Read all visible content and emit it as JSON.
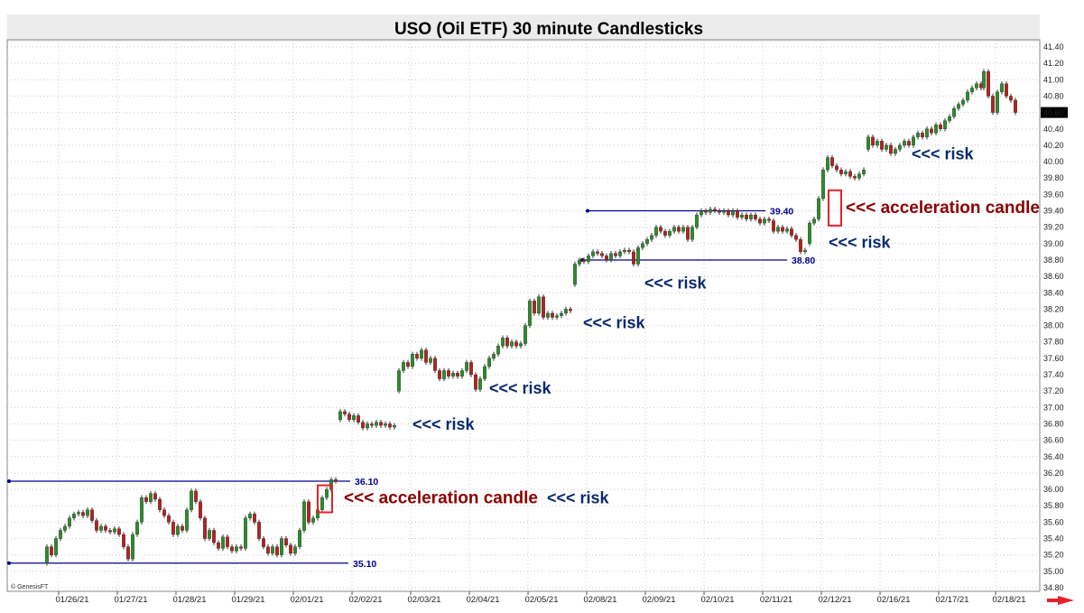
{
  "colors": {
    "up": "#2e8b2e",
    "down": "#b22222",
    "wick": "#333333",
    "level_line": "#00008b",
    "annotation_risk": "#0a2a6e",
    "annotation_accel": "#8b0000",
    "box": "#e8202a",
    "title_bg": "#ececec",
    "arrow": "#e8202a"
  },
  "chart_data": {
    "type": "candlestick",
    "title": "USO (Oil ETF) 30 minute Candlesticks",
    "credit": "© GenesisFT",
    "ylim": [
      34.8,
      41.4
    ],
    "yticks": [
      "34.80",
      "35.00",
      "35.20",
      "35.40",
      "35.60",
      "35.80",
      "36.00",
      "36.20",
      "36.40",
      "36.60",
      "36.80",
      "37.00",
      "37.20",
      "37.40",
      "37.60",
      "37.80",
      "38.00",
      "38.20",
      "38.40",
      "38.60",
      "38.80",
      "39.00",
      "39.20",
      "39.40",
      "39.60",
      "39.80",
      "40.00",
      "40.20",
      "40.40",
      "40.60",
      "40.80",
      "41.00",
      "41.20",
      "41.40"
    ],
    "last_price": "40.60",
    "grid": true,
    "x_categories": [
      "01/26/21",
      "01/27/21",
      "01/28/21",
      "01/29/21",
      "02/01/21",
      "02/02/21",
      "02/03/21",
      "02/04/21",
      "02/05/21",
      "02/08/21",
      "02/09/21",
      "02/10/21",
      "02/11/21",
      "02/12/21",
      "02/16/21",
      "02/17/21",
      "02/18/21"
    ],
    "sessions": [
      {
        "label": "01/26/21",
        "points": [
          [
            35.1,
            35.3
          ],
          [
            35.3,
            35.2
          ],
          [
            35.2,
            35.4
          ],
          [
            35.4,
            35.5
          ],
          [
            35.5,
            35.55
          ],
          [
            35.55,
            35.65
          ],
          [
            35.65,
            35.7
          ],
          [
            35.7,
            35.72
          ],
          [
            35.72,
            35.68
          ],
          [
            35.68,
            35.75
          ],
          [
            35.75,
            35.62
          ],
          [
            35.62,
            35.5
          ],
          [
            35.5,
            35.55
          ]
        ]
      },
      {
        "label": "01/27/21",
        "points": [
          [
            35.55,
            35.5
          ],
          [
            35.5,
            35.48
          ],
          [
            35.48,
            35.52
          ],
          [
            35.52,
            35.45
          ],
          [
            35.45,
            35.3
          ],
          [
            35.3,
            35.15
          ],
          [
            35.15,
            35.45
          ],
          [
            35.45,
            35.6
          ],
          [
            35.6,
            35.9
          ],
          [
            35.9,
            35.85
          ],
          [
            35.85,
            35.95
          ],
          [
            35.95,
            35.88
          ],
          [
            35.88,
            35.75
          ]
        ]
      },
      {
        "label": "01/28/21",
        "points": [
          [
            35.75,
            35.68
          ],
          [
            35.68,
            35.6
          ],
          [
            35.6,
            35.45
          ],
          [
            35.45,
            35.55
          ],
          [
            35.55,
            35.5
          ],
          [
            35.5,
            35.75
          ],
          [
            35.75,
            35.98
          ],
          [
            35.98,
            35.85
          ],
          [
            35.85,
            35.65
          ],
          [
            35.65,
            35.4
          ],
          [
            35.4,
            35.5
          ],
          [
            35.5,
            35.35
          ],
          [
            35.35,
            35.28
          ]
        ]
      },
      {
        "label": "01/29/21",
        "points": [
          [
            35.28,
            35.42
          ],
          [
            35.42,
            35.3
          ],
          [
            35.3,
            35.25
          ],
          [
            35.25,
            35.3
          ],
          [
            35.3,
            35.28
          ],
          [
            35.28,
            35.65
          ],
          [
            35.65,
            35.7
          ],
          [
            35.7,
            35.6
          ],
          [
            35.6,
            35.4
          ],
          [
            35.4,
            35.3
          ],
          [
            35.3,
            35.22
          ],
          [
            35.22,
            35.3
          ],
          [
            35.3,
            35.2
          ]
        ]
      },
      {
        "label": "02/01/21",
        "points": [
          [
            35.2,
            35.4
          ],
          [
            35.4,
            35.32
          ],
          [
            35.32,
            35.22
          ],
          [
            35.22,
            35.3
          ],
          [
            35.3,
            35.5
          ],
          [
            35.5,
            35.85
          ],
          [
            35.85,
            35.6
          ],
          [
            35.6,
            35.65
          ],
          [
            35.65,
            35.75
          ],
          [
            35.75,
            35.9
          ],
          [
            35.9,
            36.0
          ],
          [
            36.0,
            36.12
          ],
          [
            36.12,
            36.1
          ]
        ]
      },
      {
        "label": "02/02/21",
        "points": [
          [
            36.85,
            36.95
          ],
          [
            36.95,
            36.92
          ],
          [
            36.92,
            36.85
          ],
          [
            36.85,
            36.9
          ],
          [
            36.9,
            36.82
          ],
          [
            36.82,
            36.75
          ],
          [
            36.75,
            36.8
          ],
          [
            36.8,
            36.78
          ],
          [
            36.78,
            36.82
          ],
          [
            36.82,
            36.78
          ],
          [
            36.78,
            36.8
          ],
          [
            36.8,
            36.76
          ],
          [
            36.76,
            36.78
          ]
        ]
      },
      {
        "label": "02/03/21",
        "points": [
          [
            37.2,
            37.45
          ],
          [
            37.45,
            37.55
          ],
          [
            37.55,
            37.5
          ],
          [
            37.5,
            37.65
          ],
          [
            37.65,
            37.6
          ],
          [
            37.6,
            37.7
          ],
          [
            37.7,
            37.55
          ],
          [
            37.55,
            37.6
          ],
          [
            37.6,
            37.45
          ],
          [
            37.45,
            37.35
          ],
          [
            37.35,
            37.45
          ],
          [
            37.45,
            37.38
          ],
          [
            37.38,
            37.42
          ]
        ]
      },
      {
        "label": "02/04/21",
        "points": [
          [
            37.42,
            37.38
          ],
          [
            37.38,
            37.45
          ],
          [
            37.45,
            37.55
          ],
          [
            37.55,
            37.4
          ],
          [
            37.4,
            37.22
          ],
          [
            37.22,
            37.35
          ],
          [
            37.35,
            37.5
          ],
          [
            37.5,
            37.6
          ],
          [
            37.6,
            37.65
          ],
          [
            37.65,
            37.75
          ],
          [
            37.75,
            37.85
          ],
          [
            37.85,
            37.75
          ],
          [
            37.75,
            37.8
          ]
        ]
      },
      {
        "label": "02/05/21",
        "points": [
          [
            37.8,
            37.75
          ],
          [
            37.75,
            37.78
          ],
          [
            37.78,
            38.0
          ],
          [
            38.0,
            38.3
          ],
          [
            38.3,
            38.15
          ],
          [
            38.15,
            38.35
          ],
          [
            38.35,
            38.1
          ],
          [
            38.1,
            38.15
          ],
          [
            38.15,
            38.1
          ],
          [
            38.1,
            38.12
          ],
          [
            38.12,
            38.15
          ],
          [
            38.15,
            38.2
          ],
          [
            38.2,
            38.18
          ]
        ]
      },
      {
        "label": "02/08/21",
        "points": [
          [
            38.5,
            38.75
          ],
          [
            38.75,
            38.8
          ],
          [
            38.8,
            38.78
          ],
          [
            38.78,
            38.85
          ],
          [
            38.85,
            38.9
          ],
          [
            38.9,
            38.88
          ],
          [
            38.88,
            38.85
          ],
          [
            38.85,
            38.8
          ],
          [
            38.8,
            38.88
          ],
          [
            38.88,
            38.85
          ],
          [
            38.85,
            38.9
          ],
          [
            38.9,
            38.92
          ],
          [
            38.92,
            38.9
          ]
        ]
      },
      {
        "label": "02/09/21",
        "points": [
          [
            38.9,
            38.75
          ],
          [
            38.75,
            38.95
          ],
          [
            38.95,
            39.0
          ],
          [
            39.0,
            39.05
          ],
          [
            39.05,
            39.1
          ],
          [
            39.1,
            39.2
          ],
          [
            39.2,
            39.15
          ],
          [
            39.15,
            39.1
          ],
          [
            39.1,
            39.15
          ],
          [
            39.15,
            39.2
          ],
          [
            39.2,
            39.15
          ],
          [
            39.15,
            39.2
          ],
          [
            39.2,
            39.05
          ]
        ]
      },
      {
        "label": "02/10/21",
        "points": [
          [
            39.05,
            39.2
          ],
          [
            39.2,
            39.35
          ],
          [
            39.35,
            39.4
          ],
          [
            39.4,
            39.38
          ],
          [
            39.38,
            39.42
          ],
          [
            39.42,
            39.4
          ],
          [
            39.4,
            39.38
          ],
          [
            39.38,
            39.4
          ],
          [
            39.4,
            39.35
          ],
          [
            39.35,
            39.4
          ],
          [
            39.4,
            39.32
          ],
          [
            39.32,
            39.35
          ],
          [
            39.35,
            39.3
          ]
        ]
      },
      {
        "label": "02/11/21",
        "points": [
          [
            39.3,
            39.35
          ],
          [
            39.35,
            39.3
          ],
          [
            39.3,
            39.25
          ],
          [
            39.25,
            39.3
          ],
          [
            39.3,
            39.28
          ],
          [
            39.28,
            39.15
          ],
          [
            39.15,
            39.2
          ],
          [
            39.2,
            39.15
          ],
          [
            39.15,
            39.18
          ],
          [
            39.18,
            39.1
          ],
          [
            39.1,
            39.05
          ],
          [
            39.05,
            38.9
          ],
          [
            38.9,
            38.92
          ]
        ]
      },
      {
        "label": "02/12/21",
        "points": [
          [
            39.0,
            39.25
          ],
          [
            39.25,
            39.3
          ],
          [
            39.3,
            39.55
          ],
          [
            39.55,
            39.9
          ],
          [
            39.9,
            40.05
          ],
          [
            40.05,
            39.95
          ],
          [
            39.95,
            39.9
          ],
          [
            39.9,
            39.85
          ],
          [
            39.85,
            39.88
          ],
          [
            39.88,
            39.82
          ],
          [
            39.82,
            39.8
          ],
          [
            39.8,
            39.85
          ],
          [
            39.85,
            39.9
          ]
        ]
      },
      {
        "label": "02/16/21",
        "points": [
          [
            40.15,
            40.3
          ],
          [
            40.3,
            40.2
          ],
          [
            40.2,
            40.25
          ],
          [
            40.25,
            40.15
          ],
          [
            40.15,
            40.2
          ],
          [
            40.2,
            40.1
          ],
          [
            40.1,
            40.15
          ],
          [
            40.15,
            40.2
          ],
          [
            40.2,
            40.25
          ],
          [
            40.25,
            40.2
          ],
          [
            40.2,
            40.3
          ],
          [
            40.3,
            40.35
          ],
          [
            40.35,
            40.3
          ]
        ]
      },
      {
        "label": "02/17/21",
        "points": [
          [
            40.3,
            40.4
          ],
          [
            40.4,
            40.35
          ],
          [
            40.35,
            40.45
          ],
          [
            40.45,
            40.4
          ],
          [
            40.4,
            40.5
          ],
          [
            40.5,
            40.55
          ],
          [
            40.55,
            40.65
          ],
          [
            40.65,
            40.7
          ],
          [
            40.7,
            40.75
          ],
          [
            40.75,
            40.85
          ],
          [
            40.85,
            40.9
          ],
          [
            40.9,
            40.95
          ],
          [
            40.95,
            40.9
          ]
        ]
      },
      {
        "label": "02/18/21",
        "points": [
          [
            40.9,
            41.1
          ],
          [
            41.1,
            40.8
          ],
          [
            40.8,
            40.6
          ],
          [
            40.6,
            40.85
          ],
          [
            40.85,
            40.95
          ],
          [
            40.95,
            40.8
          ],
          [
            40.8,
            40.75
          ],
          [
            40.75,
            40.6
          ]
        ]
      }
    ],
    "levels": [
      {
        "value": 36.1,
        "label": "36.10",
        "from": "01/26/21",
        "to_session": 4
      },
      {
        "value": 35.1,
        "label": "35.10",
        "from": "01/26/21",
        "to_session": 4
      },
      {
        "value": 39.4,
        "label": "39.40",
        "from_session": 9,
        "to_session": 11
      },
      {
        "value": 38.8,
        "label": "38.80",
        "from_session": 9,
        "to_session": 12
      }
    ],
    "annotations": [
      {
        "text": "<<< acceleration candle",
        "style": "accel",
        "value": 35.9
      },
      {
        "text": "<<< risk",
        "style": "risk",
        "value": 35.9
      },
      {
        "text": "<<< risk",
        "style": "risk",
        "value": 36.8
      },
      {
        "text": "<<< risk",
        "style": "risk",
        "value": 37.2
      },
      {
        "text": "<<< risk",
        "style": "risk",
        "value": 38.0
      },
      {
        "text": "<<< risk",
        "style": "risk",
        "value": 38.5
      },
      {
        "text": "<<< risk",
        "style": "risk",
        "value": 39.0
      },
      {
        "text": "<<< acceleration candle",
        "style": "accel",
        "value": 39.4
      },
      {
        "text": "<<< risk",
        "style": "risk",
        "value": 40.05
      }
    ]
  }
}
